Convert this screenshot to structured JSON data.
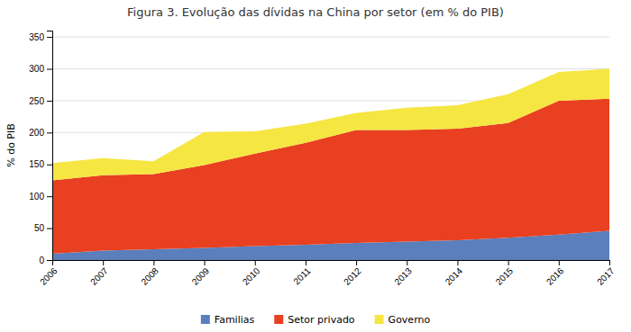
{
  "chart_data": {
    "type": "area",
    "stacked": true,
    "title": "Figura 3. Evolução das dívidas na China por setor (em % do PIB)",
    "ylabel": "% do PIB",
    "x": [
      2006,
      2007,
      2008,
      2009,
      2010,
      2011,
      2012,
      2013,
      2014,
      2015,
      2016,
      2017
    ],
    "series": [
      {
        "name": "Familias",
        "color": "#5b7fbc",
        "values": [
          10,
          15,
          17,
          19,
          22,
          24,
          27,
          29,
          31,
          35,
          40,
          46
        ]
      },
      {
        "name": "Setor privado",
        "color": "#e84020",
        "values": [
          115,
          118,
          118,
          130,
          145,
          160,
          177,
          175,
          175,
          180,
          210,
          207
        ]
      },
      {
        "name": "Governo",
        "color": "#f5e642",
        "values": [
          27,
          27,
          20,
          52,
          35,
          30,
          27,
          35,
          37,
          45,
          45,
          47
        ]
      }
    ],
    "xlim": [
      2006,
      2017
    ],
    "xticks": [
      2006,
      2007,
      2008,
      2009,
      2010,
      2011,
      2012,
      2013,
      2014,
      2015,
      2016,
      2017
    ],
    "ylim": [
      0,
      360
    ],
    "yticks": [
      0,
      50,
      100,
      150,
      200,
      250,
      300,
      350
    ],
    "grid": true,
    "legend": "bottom"
  }
}
